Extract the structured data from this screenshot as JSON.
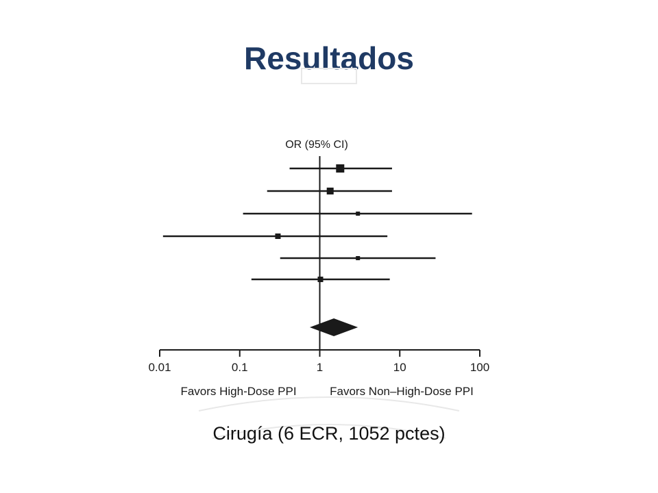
{
  "slide": {
    "title": "Resultados",
    "subtitle": "Cirugía (6 ECR, 1052 pctes)"
  },
  "chart_data": {
    "type": "forest",
    "column_header": "OR (95% CI)",
    "x_scale": "log",
    "xlim": [
      0.01,
      100
    ],
    "x_ticks": [
      0.01,
      0.1,
      1,
      10,
      100
    ],
    "x_tick_labels": [
      "0.01",
      "0.1",
      "1",
      "10",
      "100"
    ],
    "reference_line": 1,
    "favors_left_label": "Favors High-Dose PPI",
    "favors_right_label": "Favors Non–High-Dose PPI",
    "studies": [
      {
        "or": 1.8,
        "ci": [
          0.42,
          8.0
        ],
        "marker": "large"
      },
      {
        "or": 1.35,
        "ci": [
          0.22,
          8.0
        ],
        "marker": "medium"
      },
      {
        "or": 3.0,
        "ci": [
          0.11,
          80.0
        ],
        "marker": "small"
      },
      {
        "or": 0.3,
        "ci": [
          0.011,
          7.0
        ],
        "marker": "medium-small"
      },
      {
        "or": 3.0,
        "ci": [
          0.32,
          28.0
        ],
        "marker": "small"
      },
      {
        "or": 1.02,
        "ci": [
          0.14,
          7.5
        ],
        "marker": "medium-small"
      }
    ],
    "pooled": {
      "or": 1.5,
      "ci": [
        0.75,
        3.0
      ]
    },
    "colors": {
      "ink": "#1a1a1a",
      "title": "#1f3a64"
    }
  }
}
